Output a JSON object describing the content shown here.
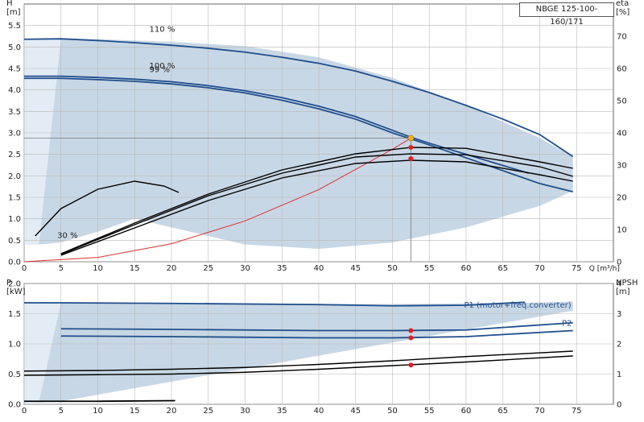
{
  "chart_data": [
    {
      "type": "line",
      "title": "NBGE 125-100-160/171",
      "xlabel": "Q [m³/h]",
      "ylabel": "H",
      "ylabel_unit": "[m]",
      "y2label": "eta",
      "y2label_unit": "[%]",
      "xlim": [
        0,
        80
      ],
      "ylim": [
        0,
        6
      ],
      "y2lim": [
        0,
        80
      ],
      "x_ticks": [
        0,
        5,
        10,
        15,
        20,
        25,
        30,
        35,
        40,
        45,
        50,
        55,
        60,
        65,
        70,
        75
      ],
      "y_ticks": [
        0.0,
        0.5,
        1.0,
        1.5,
        2.0,
        2.5,
        3.0,
        3.5,
        4.0,
        4.5,
        5.0,
        5.5
      ],
      "y2_ticks": [
        0,
        10,
        20,
        30,
        40,
        50,
        60,
        70
      ],
      "grid": true,
      "annotations": [
        {
          "text": "110 %",
          "x": 17,
          "y": 5.35
        },
        {
          "text": "100 %",
          "x": 17,
          "y": 4.5
        },
        {
          "text": "99 %",
          "x": 17,
          "y": 4.42
        },
        {
          "text": "30 %",
          "x": 4.5,
          "y": 0.55
        }
      ],
      "operating_region": [
        [
          2,
          0.4
        ],
        [
          5,
          0.45
        ],
        [
          10,
          0.7
        ],
        [
          15,
          1.0
        ],
        [
          20,
          0.8
        ],
        [
          30,
          0.4
        ],
        [
          40,
          0.3
        ],
        [
          50,
          0.45
        ],
        [
          60,
          0.8
        ],
        [
          70,
          1.3
        ],
        [
          74.5,
          1.65
        ],
        [
          74.5,
          2.45
        ],
        [
          70,
          2.88
        ],
        [
          60,
          3.64
        ],
        [
          50,
          4.28
        ],
        [
          40,
          4.76
        ],
        [
          30,
          5.02
        ],
        [
          20,
          5.12
        ],
        [
          10,
          5.18
        ],
        [
          0,
          5.18
        ],
        [
          0,
          0.4
        ]
      ],
      "series": [
        {
          "name": "110 %",
          "role": "head",
          "color": "#1f4e8c",
          "x": [
            0,
            5,
            10,
            15,
            20,
            25,
            30,
            35,
            40,
            45,
            50,
            55,
            60,
            65,
            70,
            74.5
          ],
          "y": [
            5.18,
            5.19,
            5.15,
            5.1,
            5.04,
            4.97,
            4.88,
            4.76,
            4.62,
            4.44,
            4.2,
            3.94,
            3.64,
            3.32,
            2.96,
            2.45
          ]
        },
        {
          "name": "100 %",
          "role": "head",
          "color": "#1f4e8c",
          "x": [
            0,
            5,
            10,
            15,
            20,
            25,
            30,
            35,
            40,
            45,
            50,
            52.5,
            55,
            60,
            65,
            68.5
          ],
          "y": [
            4.32,
            4.32,
            4.29,
            4.25,
            4.19,
            4.1,
            3.98,
            3.82,
            3.62,
            3.38,
            3.06,
            2.9,
            2.76,
            2.5,
            2.24,
            2.06
          ]
        },
        {
          "name": "99 %",
          "role": "head",
          "color": "#1f4e8c",
          "x": [
            0,
            5,
            10,
            15,
            20,
            25,
            30,
            35,
            40,
            45,
            50,
            52.5,
            55,
            60,
            65,
            70,
            74.5
          ],
          "y": [
            4.27,
            4.27,
            4.24,
            4.2,
            4.14,
            4.05,
            3.93,
            3.76,
            3.56,
            3.32,
            3.0,
            2.86,
            2.72,
            2.42,
            2.12,
            1.82,
            1.63
          ]
        },
        {
          "name": "system curve",
          "role": "system",
          "color": "#e03030",
          "x": [
            0,
            10,
            20,
            30,
            40,
            50,
            52.5
          ],
          "y": [
            0,
            0.1,
            0.42,
            0.95,
            1.68,
            2.62,
            2.88
          ]
        },
        {
          "name": "eta 110 %",
          "role": "eta",
          "color": "#000000",
          "x": [
            5,
            15,
            25,
            35,
            45,
            52.5,
            60,
            70,
            74.5
          ],
          "y": [
            2.5,
            12,
            21,
            28.5,
            33.5,
            35.5,
            35.2,
            31,
            29
          ]
        },
        {
          "name": "eta 100 %",
          "role": "eta",
          "color": "#000000",
          "x": [
            5,
            15,
            25,
            35,
            45,
            52.5,
            60,
            70,
            74.5
          ],
          "y": [
            2.3,
            11.5,
            20.5,
            27.5,
            32.5,
            33.5,
            33.2,
            29.5,
            26.5
          ]
        },
        {
          "name": "eta 99 %",
          "role": "eta",
          "color": "#000000",
          "x": [
            5,
            15,
            25,
            35,
            45,
            52.5,
            60,
            70,
            74.5
          ],
          "y": [
            2,
            10.5,
            19,
            26,
            30.5,
            31.5,
            31,
            27,
            25
          ]
        },
        {
          "name": "eta 30 %",
          "role": "eta",
          "color": "#000000",
          "x": [
            1.5,
            5,
            10,
            15,
            19,
            21
          ],
          "y": [
            8,
            16.5,
            22.5,
            25,
            23.5,
            21.5
          ]
        }
      ],
      "duty_point": {
        "x": 52.5,
        "y": 2.88
      },
      "eta_marks": [
        {
          "x": 52.5,
          "y": 35.5
        },
        {
          "x": 52.5,
          "y": 32
        }
      ]
    },
    {
      "type": "line",
      "xlabel": "",
      "ylabel": "P",
      "ylabel_unit": "[kW]",
      "y2label": "NPSH",
      "y2label_unit": "[m]",
      "xlim": [
        0,
        80
      ],
      "ylim": [
        0,
        2.0
      ],
      "y2lim": [
        0,
        4.0
      ],
      "x_ticks": [
        0,
        5,
        10,
        15,
        20,
        25,
        30,
        35,
        40,
        45,
        50,
        55,
        60,
        65,
        70,
        75
      ],
      "y_ticks": [
        0.0,
        0.5,
        1.0,
        1.5,
        2.0
      ],
      "y2_ticks": [
        0,
        1,
        2,
        3,
        4
      ],
      "grid": true,
      "annotations": [
        {
          "text": "P1 (motor+freq.converter)",
          "x": 67,
          "y": 1.6
        },
        {
          "text": "P2",
          "x": 73,
          "y": 1.3
        }
      ],
      "operating_region": [
        [
          2,
          0.03
        ],
        [
          5,
          0.05
        ],
        [
          74.5,
          1.55
        ],
        [
          74.5,
          1.7
        ],
        [
          68,
          1.68
        ],
        [
          50,
          1.66
        ],
        [
          5,
          1.68
        ],
        [
          0,
          1.7
        ],
        [
          0,
          0.03
        ]
      ],
      "series": [
        {
          "name": "P1 (motor+freq.converter)",
          "role": "power",
          "color": "#1f4e8c",
          "x": [
            0,
            5,
            20,
            40,
            50,
            60,
            68
          ],
          "y": [
            1.68,
            1.68,
            1.67,
            1.65,
            1.63,
            1.64,
            1.69
          ]
        },
        {
          "name": "P2",
          "role": "power",
          "color": "#1f4e8c",
          "x": [
            5,
            20,
            40,
            50,
            60,
            74.5
          ],
          "y": [
            1.25,
            1.24,
            1.22,
            1.22,
            1.23,
            1.35
          ]
        },
        {
          "name": "P 100 %",
          "role": "power",
          "color": "#1f4e8c",
          "x": [
            5,
            20,
            40,
            50,
            60,
            74.5
          ],
          "y": [
            1.13,
            1.12,
            1.1,
            1.1,
            1.12,
            1.22
          ]
        },
        {
          "name": "NPSH 100 %",
          "role": "npsh",
          "color": "#000000",
          "x": [
            0,
            10,
            20,
            30,
            40,
            50,
            60,
            74.5
          ],
          "y": [
            0.48,
            0.49,
            0.5,
            0.53,
            0.58,
            0.64,
            0.7,
            0.8
          ]
        },
        {
          "name": "NPSH 110 %",
          "role": "npsh",
          "color": "#000000",
          "x": [
            0,
            10,
            20,
            30,
            40,
            50,
            60,
            74.5
          ],
          "y": [
            0.55,
            0.56,
            0.58,
            0.61,
            0.66,
            0.72,
            0.79,
            0.88
          ]
        },
        {
          "name": "P 30 %",
          "role": "power",
          "color": "#000000",
          "x": [
            0,
            5,
            10,
            20.5
          ],
          "y": [
            0.05,
            0.05,
            0.05,
            0.06
          ]
        }
      ],
      "duty_marks": [
        {
          "x": 52.5,
          "y": 1.22
        },
        {
          "x": 52.5,
          "y": 1.1
        },
        {
          "x": 52.5,
          "y": 0.65
        }
      ]
    }
  ]
}
